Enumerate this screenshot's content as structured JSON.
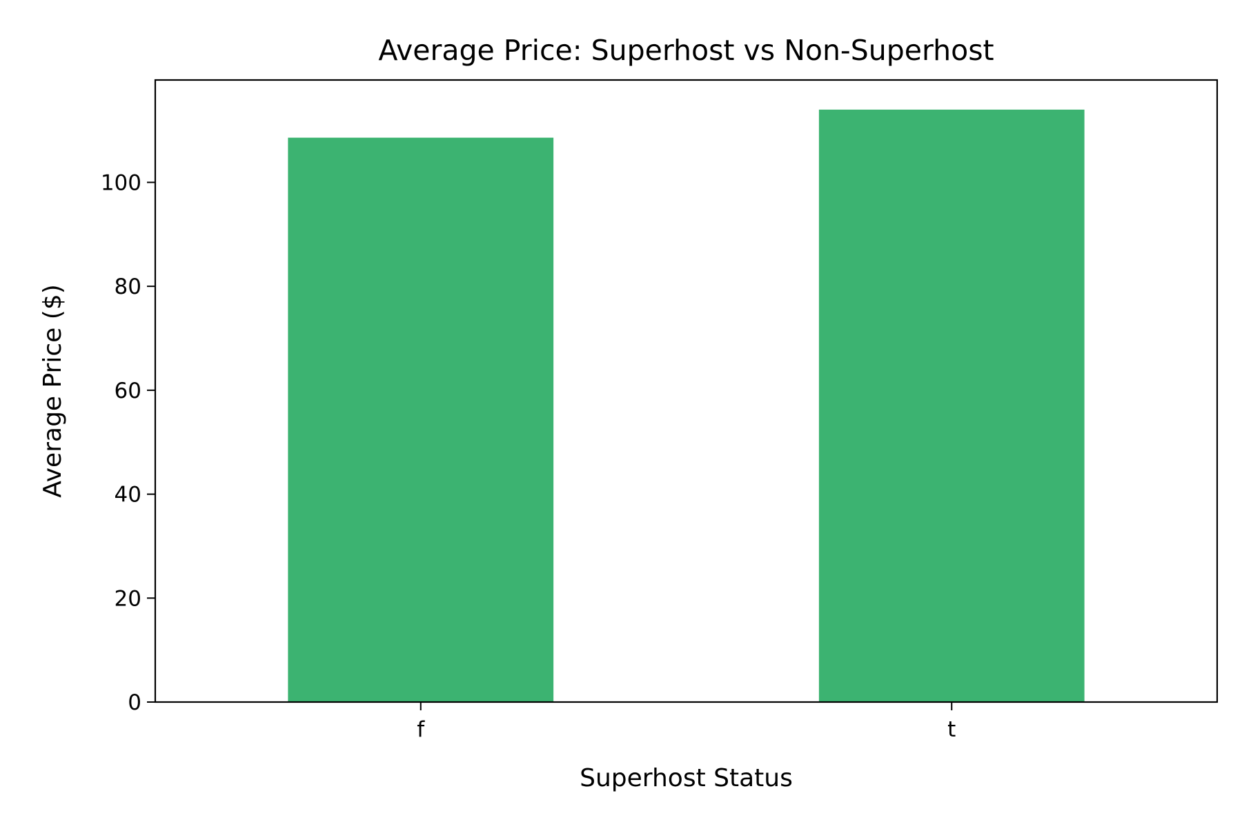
{
  "chart_data": {
    "type": "bar",
    "title": "Average Price: Superhost vs Non-Superhost",
    "xlabel": "Superhost Status",
    "ylabel": "Average Price ($)",
    "categories": [
      "f",
      "t"
    ],
    "values": [
      108.6,
      114.0
    ],
    "ylim": [
      0,
      119.7
    ],
    "yticks": [
      0,
      20,
      40,
      60,
      80,
      100
    ],
    "bar_color": "#3cb371",
    "grid": false,
    "legend": "none"
  }
}
